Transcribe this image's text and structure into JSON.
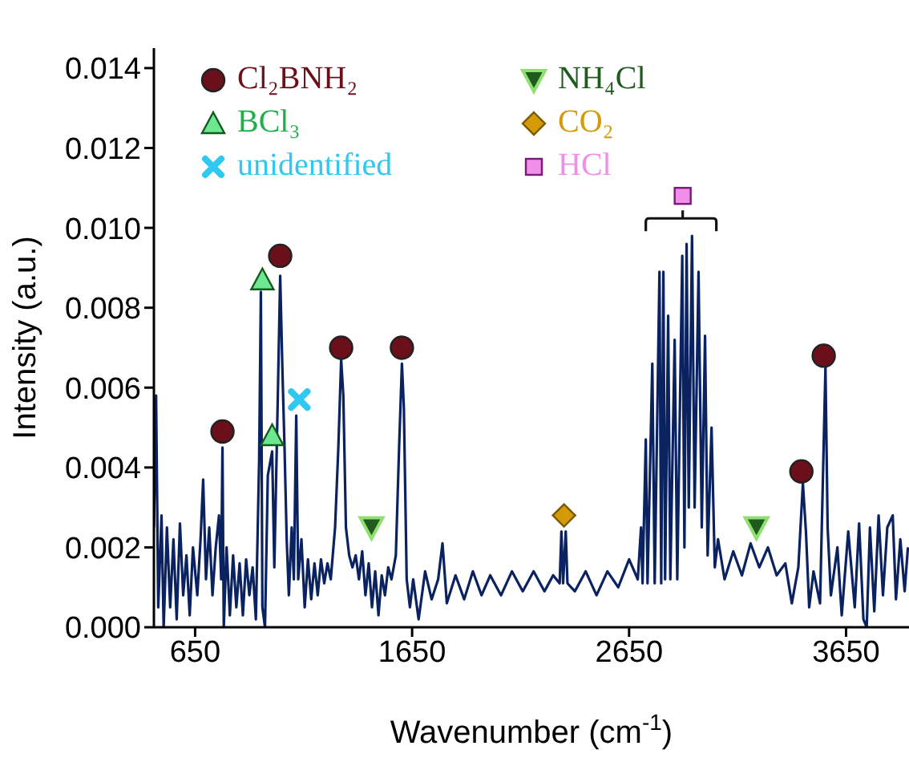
{
  "chart_data": {
    "type": "line",
    "xlabel": "Wavenumber  (cm$^{-1}$)",
    "ylabel": "Intensity (a.u.)",
    "xlim": [
      460,
      3940
    ],
    "xticks": [
      650,
      1650,
      2650,
      3650
    ],
    "ylim": [
      0,
      0.0145
    ],
    "yticks": [
      {
        "value": 0,
        "label": "0.000"
      },
      {
        "value": 0.002,
        "label": "0.002"
      },
      {
        "value": 0.004,
        "label": "0.004"
      },
      {
        "value": 0.006,
        "label": "0.006"
      },
      {
        "value": 0.008,
        "label": "0.008"
      },
      {
        "value": 0.01,
        "label": "0.010"
      },
      {
        "value": 0.012,
        "label": "0.012"
      },
      {
        "value": 0.014,
        "label": "0.014"
      }
    ],
    "grid": false,
    "legend": "top left",
    "series": [
      {
        "type": "line",
        "color": "#0a2260",
        "marker": "none",
        "line_style": "solid",
        "x": [
          460,
          470,
          480,
          495,
          505,
          520,
          535,
          550,
          565,
          580,
          595,
          610,
          625,
          640,
          660,
          675,
          687,
          700,
          715,
          730,
          745,
          760,
          770,
          776,
          782,
          795,
          810,
          825,
          840,
          855,
          870,
          885,
          900,
          915,
          930,
          945,
          953,
          960,
          972,
          985,
          1005,
          1015,
          1030,
          1042,
          1052,
          1062,
          1072,
          1082,
          1095,
          1105,
          1116,
          1125,
          1140,
          1155,
          1170,
          1185,
          1200,
          1215,
          1230,
          1245,
          1260,
          1275,
          1295,
          1310,
          1323,
          1333,
          1345,
          1360,
          1375,
          1390,
          1405,
          1420,
          1435,
          1450,
          1465,
          1480,
          1495,
          1510,
          1525,
          1540,
          1555,
          1575,
          1590,
          1603,
          1612,
          1625,
          1640,
          1655,
          1680,
          1710,
          1740,
          1770,
          1790,
          1810,
          1850,
          1890,
          1930,
          1970,
          2010,
          2060,
          2110,
          2160,
          2210,
          2260,
          2300,
          2330,
          2338,
          2346,
          2358,
          2366,
          2400,
          2450,
          2500,
          2550,
          2600,
          2650,
          2690,
          2705,
          2712,
          2727,
          2735,
          2757,
          2768,
          2790,
          2798,
          2808,
          2816,
          2830,
          2840,
          2860,
          2872,
          2895,
          2905,
          2915,
          2925,
          2940,
          2952,
          2970,
          2985,
          3000,
          3012,
          3030,
          3045,
          3060,
          3090,
          3130,
          3170,
          3210,
          3250,
          3290,
          3330,
          3370,
          3400,
          3430,
          3451,
          3465,
          3480,
          3500,
          3530,
          3555,
          3565,
          3580,
          3610,
          3630,
          3660,
          3690,
          3710,
          3730,
          3745,
          3760,
          3780,
          3800,
          3820,
          3840,
          3865,
          3880,
          3900,
          3920,
          3935
        ],
        "values": [
          0.0025,
          0.0058,
          0.0005,
          0.0028,
          0.0,
          0.0025,
          0.0005,
          0.0022,
          0.0002,
          0.0026,
          0.0008,
          0.0018,
          0.0003,
          0.002,
          0.0008,
          0.0022,
          0.0037,
          0.0012,
          0.0025,
          0.0008,
          0.002,
          0.0028,
          0.0012,
          0.0045,
          0.0,
          0.002,
          0.0003,
          0.0018,
          0.0005,
          0.0016,
          0.0003,
          0.0017,
          0.0008,
          0.0015,
          0.0002,
          0.0042,
          0.0084,
          0.0005,
          0.0,
          0.0038,
          0.0044,
          0.0015,
          0.0055,
          0.0088,
          0.0065,
          0.0045,
          0.0022,
          0.0008,
          0.0025,
          0.0012,
          0.0053,
          0.0012,
          0.0022,
          0.0005,
          0.0017,
          0.0007,
          0.0016,
          0.0008,
          0.0017,
          0.0011,
          0.0016,
          0.0012,
          0.0025,
          0.0045,
          0.0067,
          0.0058,
          0.0025,
          0.0018,
          0.0015,
          0.0018,
          0.0012,
          0.0019,
          0.0008,
          0.0016,
          0.0005,
          0.0014,
          0.0003,
          0.0013,
          0.0008,
          0.0015,
          0.0012,
          0.0018,
          0.0045,
          0.0066,
          0.0055,
          0.0012,
          0.0005,
          0.0012,
          0.0002,
          0.0014,
          0.0007,
          0.0012,
          0.0021,
          0.0006,
          0.0013,
          0.0007,
          0.0014,
          0.0008,
          0.0013,
          0.0008,
          0.0014,
          0.0009,
          0.0014,
          0.0009,
          0.0013,
          0.0011,
          0.0024,
          0.0011,
          0.0024,
          0.0011,
          0.0009,
          0.0014,
          0.0008,
          0.0014,
          0.001,
          0.0017,
          0.0012,
          0.0025,
          0.0011,
          0.0047,
          0.0011,
          0.0066,
          0.0011,
          0.0089,
          0.0011,
          0.0089,
          0.0012,
          0.0078,
          0.0012,
          0.0072,
          0.0012,
          0.0093,
          0.002,
          0.0096,
          0.003,
          0.0098,
          0.003,
          0.0089,
          0.0025,
          0.0073,
          0.0018,
          0.005,
          0.0015,
          0.0022,
          0.0012,
          0.0019,
          0.0013,
          0.0021,
          0.0015,
          0.002,
          0.0013,
          0.0016,
          0.0006,
          0.0015,
          0.0036,
          0.0024,
          0.0005,
          0.0014,
          0.0006,
          0.0065,
          0.0025,
          0.0008,
          0.002,
          0.0003,
          0.0024,
          0.0005,
          0.0026,
          0.0002,
          0.0,
          0.0025,
          0.0004,
          0.0028,
          0.0008,
          0.0025,
          0.0028,
          0.0007,
          0.0022,
          0.0009,
          0.002
        ]
      },
      {
        "type": "scatter",
        "name": "Cl₂BNH₂",
        "color": "#6b0f1a",
        "marker": "circle",
        "x": [
          776,
          1042,
          1323,
          1603,
          3444,
          3547
        ],
        "values": [
          0.0049,
          0.0093,
          0.007,
          0.007,
          0.0039,
          0.0068
        ]
      },
      {
        "type": "scatter",
        "name": "BCl₃",
        "color": "#6ee890",
        "marker": "triangle",
        "x": [
          960,
          1005
        ],
        "values": [
          0.0087,
          0.0048
        ]
      },
      {
        "type": "scatter",
        "name": "unidentified",
        "color": "#2ec8f0",
        "marker": "cross",
        "x": [
          1130
        ],
        "values": [
          0.0057
        ]
      },
      {
        "type": "scatter",
        "name": "NH₄Cl",
        "color": "#1f5a1f",
        "marker": "triangle-down",
        "x": [
          1463,
          3237
        ],
        "values": [
          0.0025,
          0.0025
        ]
      },
      {
        "type": "scatter",
        "name": "CO₂",
        "color": "#d49a08",
        "marker": "diamond",
        "x": [
          2350
        ],
        "values": [
          0.0028
        ]
      },
      {
        "type": "scatter",
        "name": "HCl",
        "color": "#f08ee8",
        "marker": "square",
        "x": [
          2897
        ],
        "values": [
          0.0108
        ]
      }
    ]
  }
}
